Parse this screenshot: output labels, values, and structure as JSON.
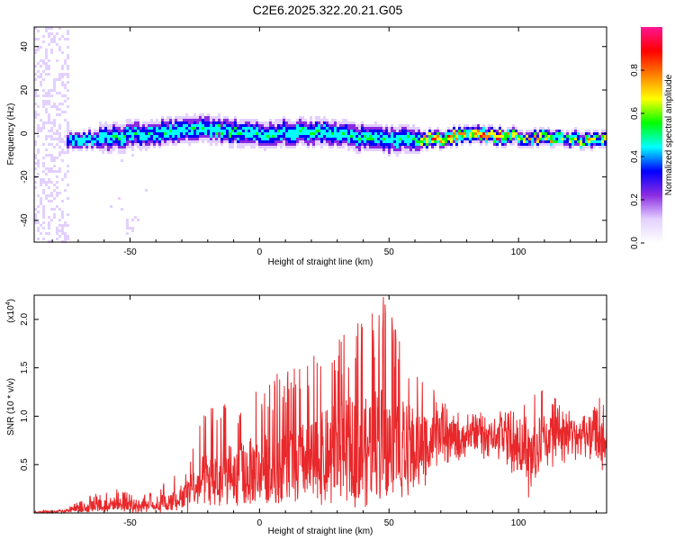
{
  "title": "C2E6.2025.322.20.21.G05",
  "chart_data": [
    {
      "type": "heatmap",
      "xlabel": "Height of straight line (km)",
      "ylabel": "Frequency (Hz)",
      "xlim": [
        -87,
        134
      ],
      "ylim": [
        -50,
        49
      ],
      "x_ticks": [
        -50,
        0,
        50,
        100
      ],
      "x_tick_labels": [
        "-50",
        "0",
        "50",
        "100"
      ],
      "y_ticks": [
        -40,
        -20,
        0,
        20,
        40
      ],
      "y_tick_labels": [
        "-40",
        "-20",
        "0",
        "20",
        "40"
      ],
      "colorbar": {
        "label": "Normalized spectral amplitude",
        "range": [
          0,
          1
        ],
        "ticks": [
          0.0,
          0.2,
          0.4,
          0.6,
          0.8
        ],
        "tick_labels": [
          "0.0",
          "0.2",
          "0.4",
          "0.6",
          "0.8"
        ],
        "colors": [
          "#ffffff",
          "#e3d0ff",
          "#8a2be2",
          "#0000ff",
          "#00ffff",
          "#00ff00",
          "#ffff00",
          "#ff8000",
          "#ff0000",
          "#ff1493"
        ]
      },
      "ridge": {
        "x": [
          -75,
          -60,
          -50,
          -40,
          -30,
          -20,
          -10,
          0,
          10,
          20,
          30,
          40,
          50,
          60,
          70,
          80,
          90,
          100,
          110,
          120,
          132
        ],
        "center_hz": [
          -4,
          -2,
          -1,
          0,
          1,
          2,
          1,
          0,
          0,
          1,
          0,
          -2,
          -3,
          -3,
          -2,
          -1,
          -1,
          -2,
          -2,
          -3,
          -3
        ]
      }
    },
    {
      "type": "line",
      "xlabel": "Height of straight line (km)",
      "ylabel": "SNR (10 * v/v)",
      "scale_label": "(x10",
      "scale_exp": "4",
      "xlim": [
        -87,
        134
      ],
      "ylim": [
        0,
        2.25
      ],
      "x_ticks": [
        -50,
        0,
        50,
        100
      ],
      "x_tick_labels": [
        "-50",
        "0",
        "50",
        "100"
      ],
      "y_ticks": [
        0.5,
        1.0,
        1.5,
        2.0
      ],
      "y_tick_labels": [
        "0.5",
        "1.0",
        "1.5",
        "2.0"
      ],
      "color": "#e8282b",
      "envelope": {
        "x": [
          -87,
          -75,
          -65,
          -55,
          -45,
          -35,
          -28,
          -25,
          -20,
          -10,
          0,
          10,
          20,
          30,
          40,
          45,
          48,
          55,
          60,
          65,
          70,
          80,
          90,
          100,
          105,
          110,
          120,
          128,
          132,
          134
        ],
        "mean": [
          0.01,
          0.02,
          0.08,
          0.1,
          0.08,
          0.12,
          0.2,
          0.3,
          0.35,
          0.4,
          0.45,
          0.5,
          0.55,
          0.65,
          0.7,
          0.75,
          0.75,
          0.7,
          0.7,
          0.75,
          0.8,
          0.8,
          0.8,
          0.7,
          0.6,
          0.8,
          0.85,
          0.8,
          0.7,
          0.75
        ],
        "peak": [
          0.02,
          0.04,
          0.2,
          0.25,
          0.18,
          0.35,
          0.5,
          0.8,
          1.1,
          1.2,
          1.4,
          1.5,
          1.6,
          1.9,
          2.0,
          2.2,
          2.25,
          1.85,
          1.7,
          1.4,
          1.15,
          1.05,
          1.05,
          1.1,
          1.2,
          1.3,
          1.05,
          1.0,
          1.35,
          0.9
        ],
        "trough": [
          0.0,
          0.0,
          0.0,
          0.0,
          0.0,
          0.0,
          0.0,
          0.0,
          0.05,
          0.05,
          0.1,
          0.1,
          0.1,
          0.05,
          0.05,
          0.1,
          0.1,
          0.15,
          0.2,
          0.3,
          0.5,
          0.55,
          0.55,
          0.3,
          0.05,
          0.4,
          0.55,
          0.5,
          0.35,
          0.55
        ]
      }
    }
  ]
}
